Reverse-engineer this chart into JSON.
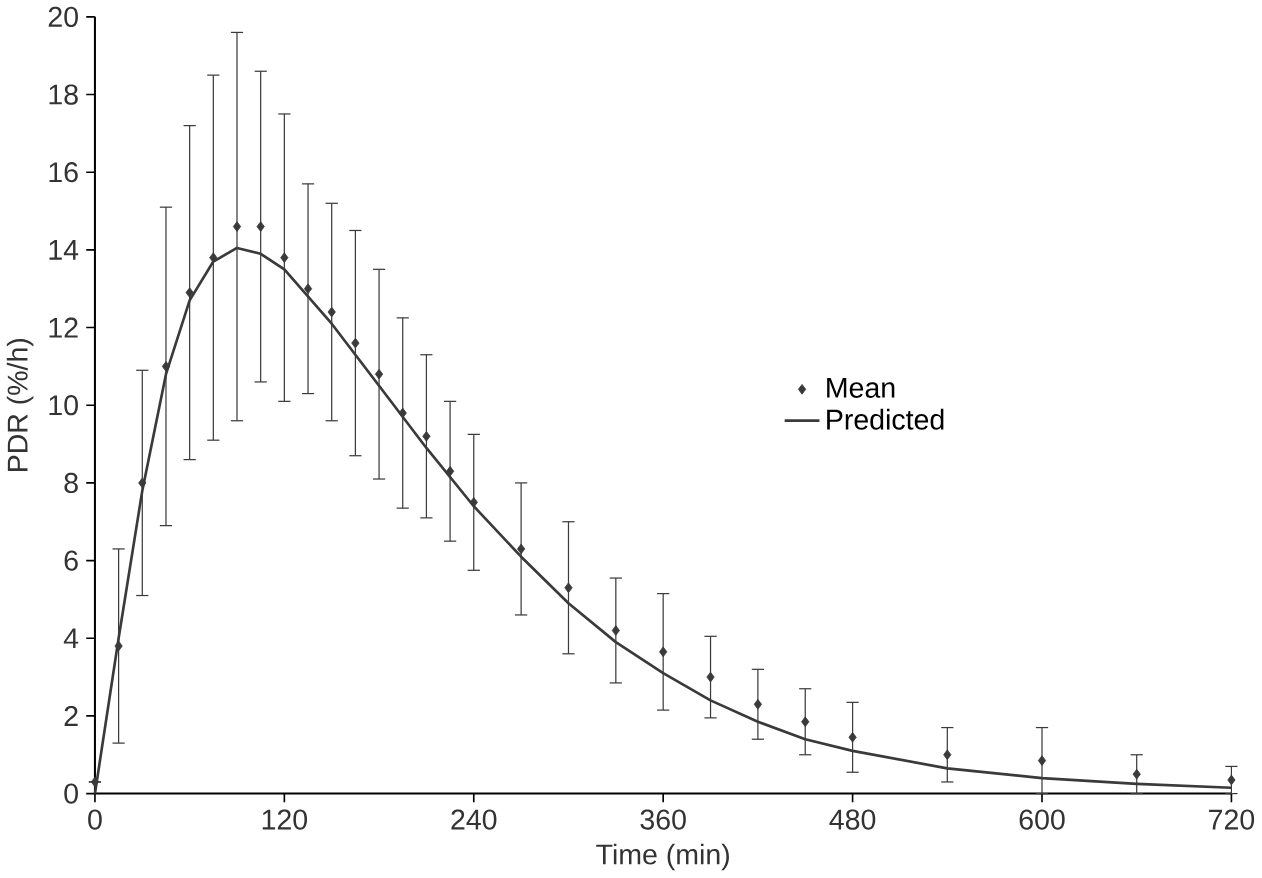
{
  "chart_data": {
    "type": "scatter",
    "xlabel": "Time (min)",
    "ylabel": "PDR (%/h)",
    "xlim": [
      0,
      720
    ],
    "ylim": [
      0,
      20
    ],
    "xticks": [
      0,
      120,
      240,
      360,
      480,
      600,
      720
    ],
    "yticks": [
      0,
      2,
      4,
      6,
      8,
      10,
      12,
      14,
      16,
      18,
      20
    ],
    "grid": false,
    "legend": "right",
    "series": [
      {
        "name": "Mean",
        "marker": "diamond",
        "color": "#3a3a3a",
        "x": [
          0,
          15,
          30,
          45,
          60,
          75,
          90,
          105,
          120,
          135,
          150,
          165,
          180,
          195,
          210,
          225,
          240,
          270,
          300,
          330,
          360,
          390,
          420,
          450,
          480,
          540,
          600,
          660,
          720
        ],
        "values": [
          0.3,
          3.8,
          8.0,
          11.0,
          12.9,
          13.8,
          14.6,
          14.6,
          13.8,
          13.0,
          12.4,
          11.6,
          10.8,
          9.8,
          9.2,
          8.3,
          7.5,
          6.3,
          5.3,
          4.2,
          3.65,
          3.0,
          2.3,
          1.85,
          1.45,
          1.0,
          0.85,
          0.5,
          0.35
        ],
        "errors": [
          null,
          2.5,
          2.9,
          4.1,
          4.3,
          4.7,
          5.0,
          4.0,
          3.7,
          2.7,
          2.8,
          2.9,
          2.7,
          2.45,
          2.1,
          1.8,
          1.75,
          1.7,
          1.7,
          1.35,
          1.5,
          1.05,
          0.9,
          0.85,
          0.9,
          0.7,
          0.85,
          0.5,
          0.35
        ]
      },
      {
        "name": "Predicted",
        "type": "line",
        "marker": "none",
        "line_style": "solid",
        "color": "#3a3a3a",
        "x": [
          0,
          15,
          30,
          45,
          60,
          75,
          90,
          105,
          120,
          150,
          180,
          210,
          240,
          270,
          300,
          330,
          360,
          390,
          420,
          450,
          480,
          540,
          600,
          660,
          720
        ],
        "values": [
          0,
          4.0,
          7.8,
          10.8,
          12.7,
          13.7,
          14.05,
          13.9,
          13.5,
          12.1,
          10.5,
          8.9,
          7.4,
          6.1,
          4.9,
          3.9,
          3.1,
          2.4,
          1.85,
          1.4,
          1.1,
          0.65,
          0.4,
          0.25,
          0.15
        ]
      }
    ]
  }
}
